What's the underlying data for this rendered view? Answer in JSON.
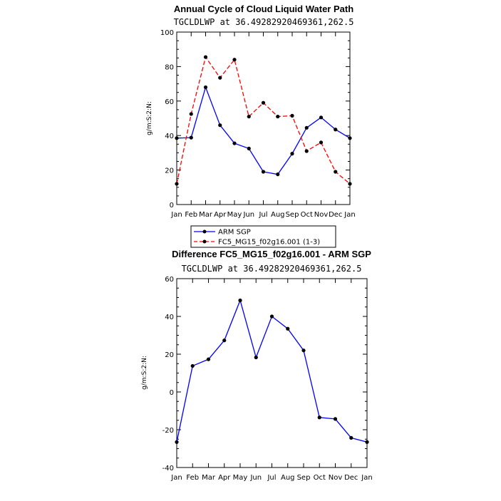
{
  "chart_data": [
    {
      "type": "line",
      "title": "Annual Cycle of Cloud Liquid Water Path",
      "subtitle": "TGCLDLWP at 36.49282920469361,262.5",
      "ylabel": "g/m:S:2:N:",
      "xlabel": "",
      "categories": [
        "Jan",
        "Feb",
        "Mar",
        "Apr",
        "May",
        "Jun",
        "Jul",
        "Aug",
        "Sep",
        "Oct",
        "Nov",
        "Dec",
        "Jan"
      ],
      "ylim": [
        0,
        100
      ],
      "yticks": [
        0,
        20,
        40,
        60,
        80,
        100
      ],
      "series": [
        {
          "name": "ARM SGP",
          "color": "#0000ff",
          "dash": "solid",
          "values": [
            38.5,
            38.8,
            68,
            46,
            35.5,
            32.5,
            19,
            17.5,
            29.5,
            44.5,
            50.5,
            43.5,
            38.5
          ]
        },
        {
          "name": "FC5_MG15_f02g16.001 (1-3)",
          "color": "#ff0000",
          "dash": "dashed",
          "values": [
            12,
            52.5,
            85.5,
            73.5,
            84,
            51,
            59,
            51,
            51.5,
            31,
            36,
            19,
            12
          ]
        }
      ],
      "legend": "bottom"
    },
    {
      "type": "line",
      "title": "Difference FC5_MG15_f02g16.001 - ARM SGP",
      "subtitle": "TGCLDLWP at 36.49282920469361,262.5",
      "ylabel": "g/m:S:2:N:",
      "xlabel": "",
      "categories": [
        "Jan",
        "Feb",
        "Mar",
        "Apr",
        "May",
        "Jun",
        "Jul",
        "Aug",
        "Sep",
        "Oct",
        "Nov",
        "Dec",
        "Jan"
      ],
      "ylim": [
        -40,
        60
      ],
      "yticks": [
        -40,
        -20,
        0,
        20,
        40,
        60
      ],
      "series": [
        {
          "color": "#0000ff",
          "dash": "solid",
          "values": [
            -26.5,
            13.8,
            17.3,
            27.3,
            48.5,
            18.3,
            40,
            33.5,
            22,
            -13.5,
            -14.3,
            -24.3,
            -26.5
          ]
        }
      ]
    }
  ]
}
